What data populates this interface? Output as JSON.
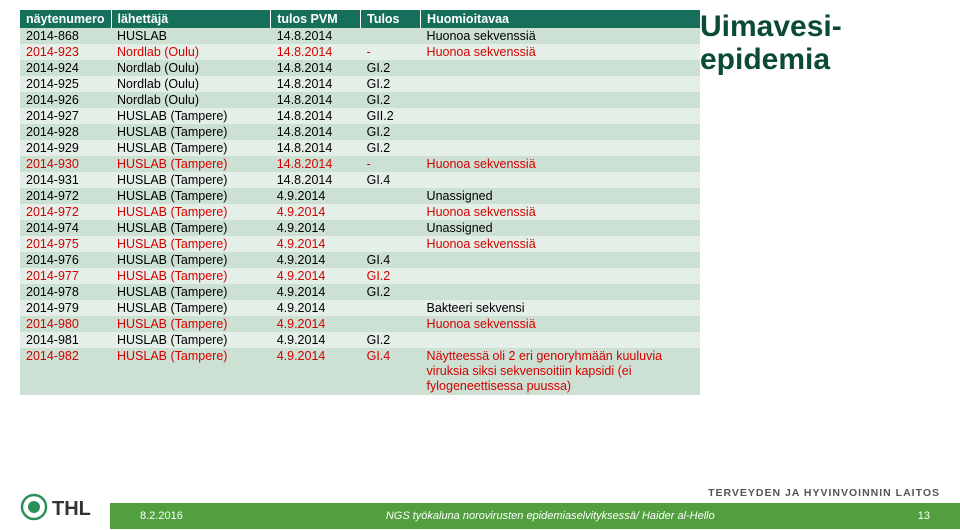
{
  "title_line1": "Uimavesi-",
  "title_line2": "epidemia",
  "headers": [
    "näytenumero",
    "lähettäjä",
    "tulos PVM",
    "Tulos",
    "Huomioitavaa"
  ],
  "header_bg": "#166f5a",
  "row_bg_even": "#e4efe8",
  "row_bg_odd": "#cde0d4",
  "red_color": "#d60000",
  "rows": [
    {
      "c": [
        "2014-868",
        "HUSLAB",
        "14.8.2014",
        "",
        "Huonoa sekvenssiä"
      ],
      "red": false
    },
    {
      "c": [
        "2014-923",
        "Nordlab (Oulu)",
        "14.8.2014",
        "-",
        "Huonoa sekvenssiä"
      ],
      "red": true
    },
    {
      "c": [
        "2014-924",
        "Nordlab (Oulu)",
        "14.8.2014",
        "GI.2",
        ""
      ],
      "red": false
    },
    {
      "c": [
        "2014-925",
        "Nordlab (Oulu)",
        "14.8.2014",
        "GI.2",
        ""
      ],
      "red": false
    },
    {
      "c": [
        "2014-926",
        "Nordlab (Oulu)",
        "14.8.2014",
        "GI.2",
        ""
      ],
      "red": false
    },
    {
      "c": [
        "2014-927",
        "HUSLAB (Tampere)",
        "14.8.2014",
        "GII.2",
        ""
      ],
      "red": false
    },
    {
      "c": [
        "2014-928",
        "HUSLAB (Tampere)",
        "14.8.2014",
        "GI.2",
        ""
      ],
      "red": false
    },
    {
      "c": [
        "2014-929",
        "HUSLAB (Tampere)",
        "14.8.2014",
        "GI.2",
        ""
      ],
      "red": false
    },
    {
      "c": [
        "2014-930",
        "HUSLAB (Tampere)",
        "14.8.2014",
        "-",
        "Huonoa sekvenssiä"
      ],
      "red": true
    },
    {
      "c": [
        "2014-931",
        "HUSLAB (Tampere)",
        "14.8.2014",
        "GI.4",
        ""
      ],
      "red": false
    },
    {
      "c": [
        "2014-972",
        "HUSLAB (Tampere)",
        "4.9.2014",
        "",
        "Unassigned"
      ],
      "red": false
    },
    {
      "c": [
        "2014-972",
        "HUSLAB (Tampere)",
        "4.9.2014",
        "",
        "Huonoa sekvenssiä"
      ],
      "red": true
    },
    {
      "c": [
        "2014-974",
        "HUSLAB (Tampere)",
        "4.9.2014",
        "",
        "Unassigned"
      ],
      "red": false
    },
    {
      "c": [
        "2014-975",
        "HUSLAB (Tampere)",
        "4.9.2014",
        "",
        "Huonoa sekvenssiä"
      ],
      "red": true
    },
    {
      "c": [
        "2014-976",
        "HUSLAB (Tampere)",
        "4.9.2014",
        "GI.4",
        ""
      ],
      "red": false
    },
    {
      "c": [
        "2014-977",
        "HUSLAB (Tampere)",
        "4.9.2014",
        "GI.2",
        ""
      ],
      "red": true
    },
    {
      "c": [
        "2014-978",
        "HUSLAB (Tampere)",
        "4.9.2014",
        "GI.2",
        ""
      ],
      "red": false
    },
    {
      "c": [
        "2014-979",
        "HUSLAB (Tampere)",
        "4.9.2014",
        "",
        "Bakteeri sekvensi"
      ],
      "red": false
    },
    {
      "c": [
        "2014-980",
        "HUSLAB (Tampere)",
        "4.9.2014",
        "",
        "Huonoa sekvenssiä"
      ],
      "red": true
    },
    {
      "c": [
        "2014-981",
        "HUSLAB (Tampere)",
        "4.9.2014",
        "GI.2",
        ""
      ],
      "red": false
    },
    {
      "c": [
        "2014-982",
        "HUSLAB (Tampere)",
        "4.9.2014",
        "GI.4",
        "Näytteessä oli 2 eri genoryhmään kuuluvia viruksia siksi sekvensoitiin kapsidi (ei fylogeneettisessa puussa)"
      ],
      "red": true
    }
  ],
  "org_text": "TERVEYDEN JA HYVINVOINNIN LAITOS",
  "footer_date": "8.2.2016",
  "footer_text": "NGS työkaluna norovirusten epidemiaselvityksessä/ Haider al-Hello",
  "footer_page": "13",
  "logo_text": "THL"
}
